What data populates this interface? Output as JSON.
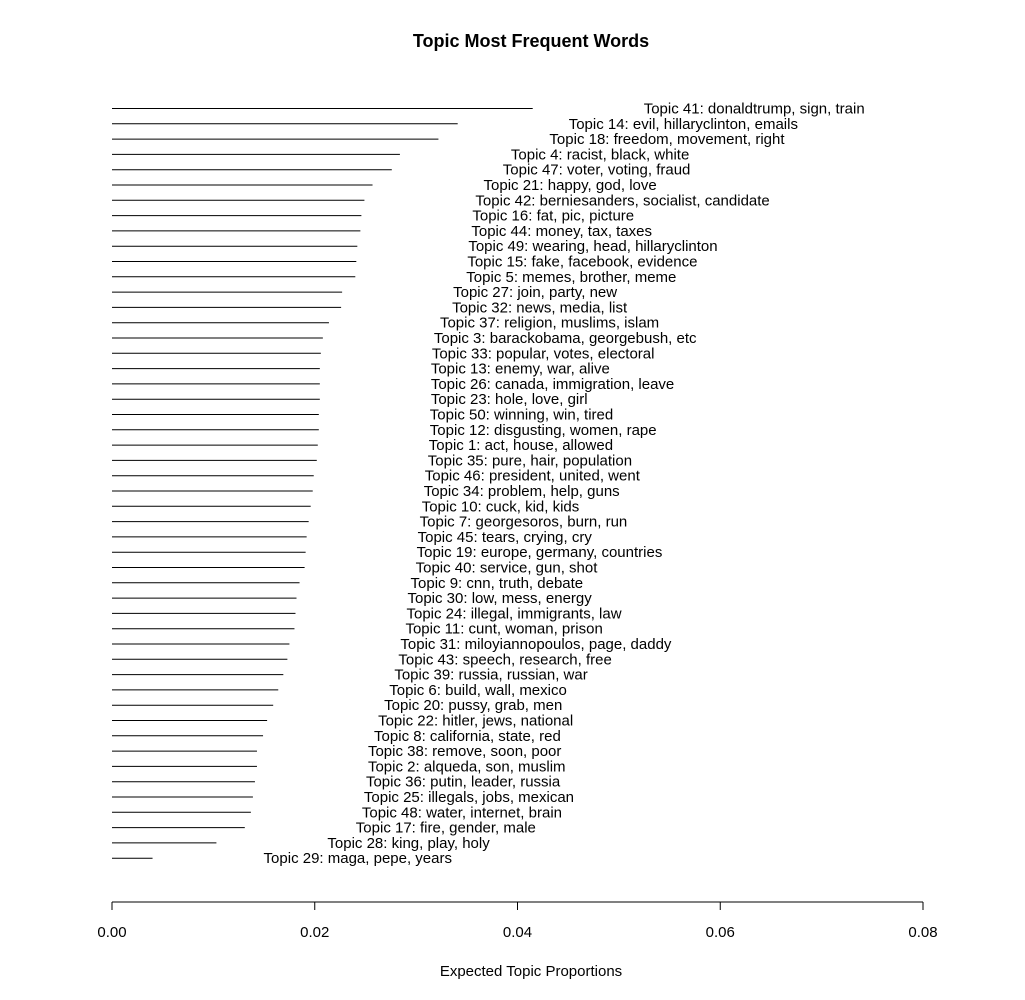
{
  "chart_data": {
    "type": "bar",
    "orientation": "horizontal",
    "title": "Topic Most Frequent Words",
    "xlabel": "Expected Topic Proportions",
    "ylabel": "",
    "xlim": [
      0,
      0.08
    ],
    "xticks": [
      0,
      0.02,
      0.04,
      0.06,
      0.08
    ],
    "xtick_labels": [
      "0.00",
      "0.02",
      "0.04",
      "0.06",
      "0.08"
    ],
    "grid": false,
    "categories": [
      "Topic 41: donaldtrump, sign, train",
      "Topic 14: evil, hillaryclinton, emails",
      "Topic 18: freedom, movement, right",
      "Topic 4: racist, black, white",
      "Topic 47: voter, voting, fraud",
      "Topic 21: happy, god, love",
      "Topic 42: berniesanders, socialist, candidate",
      "Topic 16: fat, pic, picture",
      "Topic 44: money, tax, taxes",
      "Topic 49: wearing, head, hillaryclinton",
      "Topic 15: fake, facebook, evidence",
      "Topic 5: memes, brother, meme",
      "Topic 27: join, party, new",
      "Topic 32: news, media, list",
      "Topic 37: religion, muslims, islam",
      "Topic 3: barackobama, georgebush, etc",
      "Topic 33: popular, votes, electoral",
      "Topic 13: enemy, war, alive",
      "Topic 26: canada, immigration, leave",
      "Topic 23: hole, love, girl",
      "Topic 50: winning, win, tired",
      "Topic 12: disgusting, women, rape",
      "Topic 1: act, house, allowed",
      "Topic 35: pure, hair, population",
      "Topic 46: president, united, went",
      "Topic 34: problem, help, guns",
      "Topic 10: cuck, kid, kids",
      "Topic 7: georgesoros, burn, run",
      "Topic 45: tears, crying, cry",
      "Topic 19: europe, germany, countries",
      "Topic 40: service, gun, shot",
      "Topic 9: cnn, truth, debate",
      "Topic 30: low, mess, energy",
      "Topic 24: illegal, immigrants, law",
      "Topic 11: cunt, woman, prison",
      "Topic 31: miloyiannopoulos, page, daddy",
      "Topic 43: speech, research, free",
      "Topic 39: russia, russian, war",
      "Topic 6: build, wall, mexico",
      "Topic 20: pussy, grab, men",
      "Topic 22: hitler, jews, national",
      "Topic 8: california, state, red",
      "Topic 38: remove, soon, poor",
      "Topic 2: alqueda, son, muslim",
      "Topic 36: putin, leader, russia",
      "Topic 25: illegals, jobs, mexican",
      "Topic 48: water, internet, brain",
      "Topic 17: fire, gender, male",
      "Topic 28: king, play, holy",
      "Topic 29: maga, pepe, years"
    ],
    "values": [
      0.0415,
      0.0341,
      0.0322,
      0.0284,
      0.0276,
      0.0257,
      0.0249,
      0.0246,
      0.0245,
      0.0242,
      0.0241,
      0.024,
      0.0227,
      0.0226,
      0.0214,
      0.0208,
      0.0206,
      0.0205,
      0.0205,
      0.0205,
      0.0204,
      0.0204,
      0.0203,
      0.0202,
      0.0199,
      0.0198,
      0.0196,
      0.0194,
      0.0192,
      0.0191,
      0.019,
      0.0185,
      0.0182,
      0.0181,
      0.018,
      0.0175,
      0.0173,
      0.0169,
      0.0164,
      0.0159,
      0.0153,
      0.0149,
      0.0143,
      0.0143,
      0.0141,
      0.0139,
      0.0137,
      0.0131,
      0.0103,
      0.004
    ]
  }
}
